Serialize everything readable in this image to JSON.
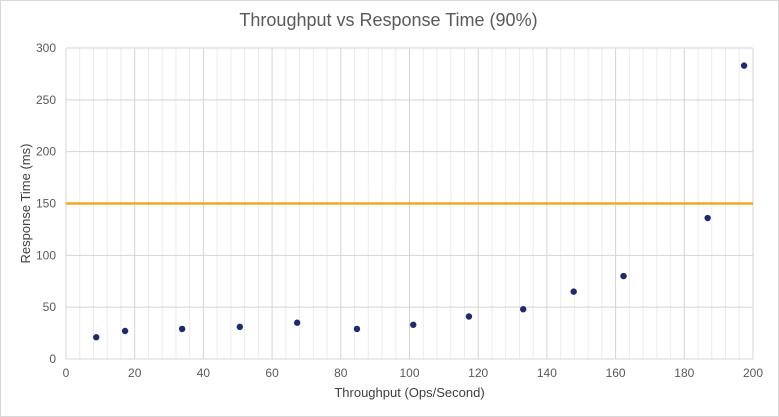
{
  "chart_data": {
    "type": "scatter",
    "title": "Throughput vs Response Time (90%)",
    "xlabel": "Throughput  (Ops/Second)",
    "ylabel": "Response Time  (ms)",
    "xlim": [
      0,
      200
    ],
    "ylim": [
      0,
      300
    ],
    "xticks": [
      0,
      20,
      40,
      60,
      80,
      100,
      120,
      140,
      160,
      180,
      200
    ],
    "yticks": [
      0,
      50,
      100,
      150,
      200,
      250,
      300
    ],
    "x_minor_step": 4,
    "grid": true,
    "legend": "none",
    "series": [
      {
        "color": "#1f2a6b",
        "points": [
          {
            "x": 8.8,
            "y": 21
          },
          {
            "x": 17.2,
            "y": 27
          },
          {
            "x": 33.8,
            "y": 29
          },
          {
            "x": 50.6,
            "y": 31
          },
          {
            "x": 67.3,
            "y": 35
          },
          {
            "x": 84.7,
            "y": 29
          },
          {
            "x": 101.1,
            "y": 33
          },
          {
            "x": 117.3,
            "y": 41
          },
          {
            "x": 133.1,
            "y": 48
          },
          {
            "x": 147.8,
            "y": 65
          },
          {
            "x": 162.3,
            "y": 80
          },
          {
            "x": 186.8,
            "y": 136
          },
          {
            "x": 197.4,
            "y": 283
          }
        ]
      }
    ],
    "threshold": {
      "y": 150,
      "color": "#f5a623"
    }
  }
}
